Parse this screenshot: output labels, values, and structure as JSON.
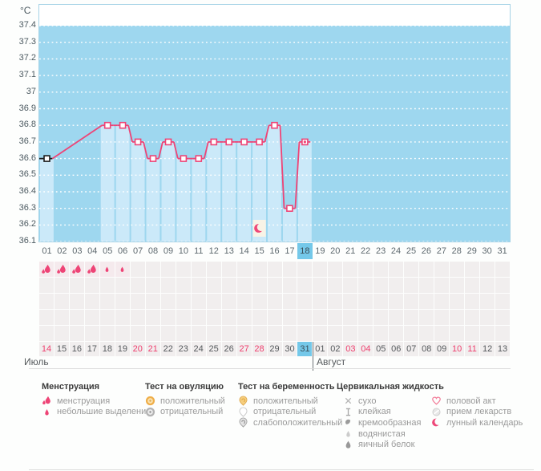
{
  "unit_label": "°C",
  "y_axis": {
    "ticks": [
      "37.4",
      "37.3",
      "37.2",
      "37.1",
      "37",
      "36.9",
      "36.8",
      "36.7",
      "36.6",
      "36.5",
      "36.4",
      "36.3",
      "36.2",
      "36.1"
    ]
  },
  "day_row": {
    "days": [
      "01",
      "02",
      "03",
      "04",
      "05",
      "06",
      "07",
      "08",
      "09",
      "10",
      "11",
      "12",
      "13",
      "14",
      "15",
      "16",
      "17",
      "18",
      "19",
      "20",
      "21",
      "22",
      "23",
      "24",
      "25",
      "26",
      "27",
      "28",
      "29",
      "30",
      "31"
    ],
    "today": "18"
  },
  "tracking_rows": {
    "row_count": 5,
    "menstruation": [
      {
        "day": 1,
        "icon": "menses-heavy"
      },
      {
        "day": 2,
        "icon": "menses-heavy"
      },
      {
        "day": 3,
        "icon": "menses-heavy"
      },
      {
        "day": 4,
        "icon": "menses-heavy"
      },
      {
        "day": 5,
        "icon": "menses-light"
      },
      {
        "day": 6,
        "icon": "menses-light"
      }
    ]
  },
  "date_row": {
    "dates": [
      {
        "label": "14",
        "weekend": true
      },
      {
        "label": "15",
        "weekend": false
      },
      {
        "label": "16",
        "weekend": false
      },
      {
        "label": "17",
        "weekend": false
      },
      {
        "label": "18",
        "weekend": false
      },
      {
        "label": "19",
        "weekend": false
      },
      {
        "label": "20",
        "weekend": true
      },
      {
        "label": "21",
        "weekend": true
      },
      {
        "label": "22",
        "weekend": false
      },
      {
        "label": "23",
        "weekend": false
      },
      {
        "label": "24",
        "weekend": false
      },
      {
        "label": "25",
        "weekend": false
      },
      {
        "label": "26",
        "weekend": false
      },
      {
        "label": "27",
        "weekend": true
      },
      {
        "label": "28",
        "weekend": true
      },
      {
        "label": "29",
        "weekend": false
      },
      {
        "label": "30",
        "weekend": false
      },
      {
        "label": "31",
        "weekend": false
      },
      {
        "label": "01",
        "weekend": false
      },
      {
        "label": "02",
        "weekend": false
      },
      {
        "label": "03",
        "weekend": true
      },
      {
        "label": "04",
        "weekend": true
      },
      {
        "label": "05",
        "weekend": false
      },
      {
        "label": "06",
        "weekend": false
      },
      {
        "label": "07",
        "weekend": false
      },
      {
        "label": "08",
        "weekend": false
      },
      {
        "label": "09",
        "weekend": false
      },
      {
        "label": "10",
        "weekend": true
      },
      {
        "label": "11",
        "weekend": true
      },
      {
        "label": "12",
        "weekend": false
      },
      {
        "label": "13",
        "weekend": false
      }
    ],
    "today_index": 17,
    "divider_after_index": 17
  },
  "months": {
    "left": "Июль",
    "right": "Август"
  },
  "chart_data": {
    "type": "line",
    "ylabel": "°C",
    "ylim": [
      36.1,
      37.4
    ],
    "y_step": 0.1,
    "x_days": 31,
    "points": [
      {
        "day": 1,
        "temp": 36.6,
        "style": "start"
      },
      {
        "day": 5,
        "temp": 36.8
      },
      {
        "day": 6,
        "temp": 36.8
      },
      {
        "day": 7,
        "temp": 36.7
      },
      {
        "day": 8,
        "temp": 36.6
      },
      {
        "day": 9,
        "temp": 36.7
      },
      {
        "day": 10,
        "temp": 36.6
      },
      {
        "day": 11,
        "temp": 36.6
      },
      {
        "day": 12,
        "temp": 36.7
      },
      {
        "day": 13,
        "temp": 36.7
      },
      {
        "day": 14,
        "temp": 36.7
      },
      {
        "day": 15,
        "temp": 36.7
      },
      {
        "day": 16,
        "temp": 36.8
      },
      {
        "day": 17,
        "temp": 36.3
      },
      {
        "day": 18,
        "temp": 36.7,
        "style": "today"
      }
    ],
    "gap_connector": "dashed",
    "annotations": [
      {
        "day": 15,
        "icon": "lunar-calendar-icon"
      }
    ]
  },
  "legend": {
    "columns": [
      {
        "header": "Менструация",
        "items": [
          {
            "icon": "menses-heavy",
            "label": "менструация"
          },
          {
            "icon": "menses-light",
            "label": "небольшие выделения"
          }
        ]
      },
      {
        "header": "Тест на овуляцию",
        "items": [
          {
            "icon": "ovu-pos",
            "label": "положительный"
          },
          {
            "icon": "ovu-neg",
            "label": "отрицательный"
          }
        ]
      },
      {
        "header": "Тест на беременность",
        "items": [
          {
            "icon": "preg-pos",
            "label": "положительный"
          },
          {
            "icon": "preg-neg",
            "label": "отрицательный"
          },
          {
            "icon": "preg-weak",
            "label": "слабоположительный"
          }
        ]
      },
      {
        "header": "Цервикальная жидкость",
        "items": [
          {
            "icon": "cf-dry",
            "label": "сухо"
          },
          {
            "icon": "cf-sticky",
            "label": "клейкая"
          },
          {
            "icon": "cf-creamy",
            "label": "кремообразная"
          },
          {
            "icon": "cf-watery",
            "label": "водянистая"
          },
          {
            "icon": "cf-eggwhite",
            "label": "яичный белок"
          }
        ]
      },
      {
        "header": "",
        "items": [
          {
            "icon": "sex",
            "label": "половой акт"
          },
          {
            "icon": "meds",
            "label": "прием лекарств"
          },
          {
            "icon": "lunar",
            "label": "лунный календарь"
          }
        ]
      }
    ]
  },
  "colors": {
    "accent_pink": "#ee4476",
    "chart_blue": "#9ed7ef",
    "chart_bar_light": "#cbe9f9",
    "today_blue": "#74c8e9",
    "weekend_red": "#ee3f6e",
    "start_marker_black": "#1c1c1c",
    "moon_patch_cream": "#f8f3e6"
  }
}
